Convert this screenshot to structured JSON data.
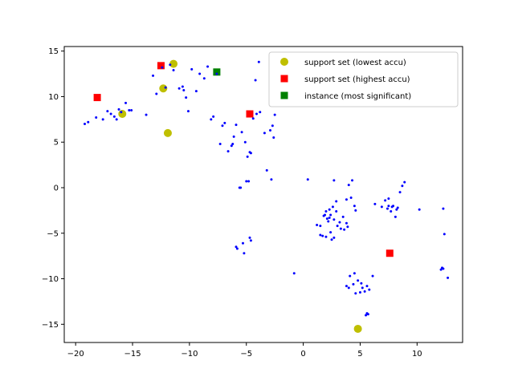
{
  "chart_data": {
    "type": "scatter",
    "xlim": [
      -21,
      14
    ],
    "ylim": [
      -17,
      15.5
    ],
    "xticks": [
      -20,
      -15,
      -10,
      -5,
      0,
      5,
      10
    ],
    "yticks": [
      -15,
      -10,
      -5,
      0,
      5,
      10,
      15
    ],
    "grid": false,
    "legend_position": "top-right",
    "base_points": {
      "color": "#0000ff",
      "x": [
        -19.2,
        -18.9,
        -18.2,
        -17.6,
        -17.2,
        -16.9,
        -16.6,
        -16.4,
        -16.2,
        -16.0,
        -15.6,
        -15.3,
        -15.1,
        -13.8,
        -13.2,
        -12.9,
        -12.4,
        -12.1,
        -11.7,
        -11.4,
        -10.9,
        -10.6,
        -10.5,
        -10.3,
        -10.1,
        -9.8,
        -9.4,
        -9.1,
        -8.7,
        -8.4,
        -8.1,
        -7.9,
        -7.6,
        -7.3,
        -7.1,
        -6.9,
        -6.6,
        -6.3,
        -6.1,
        -5.9,
        -5.6,
        -5.4,
        -5.1,
        -4.9,
        -4.6,
        -4.4,
        -4.1,
        -3.8,
        -3.4,
        -2.9,
        -2.6,
        -3.9,
        -4.2,
        -2.5,
        -2.7,
        -2.8,
        -3.2,
        -4.8,
        -5.5,
        -5.2,
        -5.8,
        -5.3,
        -4.6,
        -4.7,
        -5.9,
        -0.8,
        0.4,
        1.2,
        1.5,
        1.7,
        1.8,
        2.0,
        2.1,
        2.3,
        2.4,
        2.6,
        2.7,
        2.9,
        3.0,
        3.2,
        3.3,
        3.5,
        3.6,
        3.8,
        3.9,
        4.0,
        4.2,
        4.3,
        4.5,
        2.7,
        2.9,
        3.8,
        4.6,
        6.3,
        6.9,
        7.2,
        7.5,
        7.7,
        7.9,
        8.1,
        8.3,
        8.5,
        8.7,
        8.9,
        7.5,
        8.2,
        7.4,
        7.8,
        10.2,
        12.1,
        12.3,
        12.4,
        12.7,
        12.2,
        12.3,
        3.8,
        4.0,
        4.4,
        4.6,
        4.8,
        5.0,
        5.2,
        5.4,
        5.6,
        5.8,
        4.1,
        4.5,
        5.1,
        5.6,
        5.5,
        5.7,
        6.1,
        2.5,
        2.7,
        2.3,
        1.9,
        1.5,
        2.0,
        2.2,
        2.4,
        -5.0,
        -4.7,
        -6.2
      ],
      "y": [
        7.0,
        7.2,
        7.7,
        7.5,
        8.4,
        8.1,
        7.8,
        7.5,
        8.6,
        8.3,
        9.3,
        8.5,
        8.5,
        8.0,
        12.3,
        10.3,
        13.2,
        11.0,
        13.5,
        12.9,
        10.9,
        11.1,
        10.7,
        9.9,
        8.4,
        13.0,
        10.6,
        12.5,
        12.0,
        13.3,
        7.5,
        7.8,
        12.5,
        4.8,
        6.8,
        7.1,
        4.0,
        4.6,
        5.6,
        6.9,
        0.0,
        6.1,
        5.0,
        3.4,
        3.8,
        7.6,
        8.1,
        8.3,
        6.0,
        6.3,
        5.5,
        13.8,
        11.8,
        8.0,
        6.8,
        0.9,
        1.9,
        0.7,
        0.0,
        -7.2,
        -6.7,
        -6.1,
        -5.8,
        -5.5,
        -6.5,
        -9.4,
        0.9,
        -4.1,
        -4.2,
        -5.3,
        -3.1,
        -2.6,
        -3.4,
        -2.4,
        -3.0,
        -2.1,
        -3.5,
        -2.6,
        -4.2,
        -3.8,
        -4.5,
        -3.2,
        -4.6,
        -3.9,
        -4.3,
        0.3,
        -1.1,
        0.8,
        -2.0,
        0.8,
        -1.5,
        -1.3,
        -2.5,
        -1.8,
        -2.1,
        -1.4,
        -1.2,
        -2.6,
        -2.0,
        -3.2,
        -2.2,
        -0.5,
        0.2,
        0.6,
        -2.0,
        -2.4,
        -2.3,
        -2.1,
        -2.4,
        -9.0,
        -8.9,
        -5.1,
        -9.9,
        -8.8,
        -2.3,
        -10.8,
        -11.0,
        -10.6,
        -11.6,
        -10.2,
        -11.5,
        -11.0,
        -11.4,
        -10.8,
        -11.2,
        -9.7,
        -9.4,
        -10.5,
        -13.8,
        -14.0,
        -13.9,
        -9.7,
        -5.7,
        -5.5,
        -3.3,
        -3.0,
        -5.2,
        -5.4,
        -3.7,
        -4.9,
        0.7,
        3.9,
        4.8
      ],
      "marker": "dot"
    },
    "series": [
      {
        "name": "support set (lowest accu)",
        "color": "#bfbf00",
        "marker": "circle",
        "x": [
          -15.9,
          -12.3,
          -11.4,
          -11.9,
          4.8
        ],
        "y": [
          8.1,
          10.9,
          13.6,
          6.0,
          -15.5
        ]
      },
      {
        "name": "support set (highest accu)",
        "color": "#ff0000",
        "marker": "square",
        "x": [
          -18.1,
          -12.5,
          -4.7,
          7.6
        ],
        "y": [
          9.9,
          13.4,
          8.1,
          -7.2
        ]
      },
      {
        "name": "instance (most significant)",
        "color": "#008000",
        "marker": "square",
        "x": [
          -7.6
        ],
        "y": [
          12.7
        ]
      }
    ]
  }
}
